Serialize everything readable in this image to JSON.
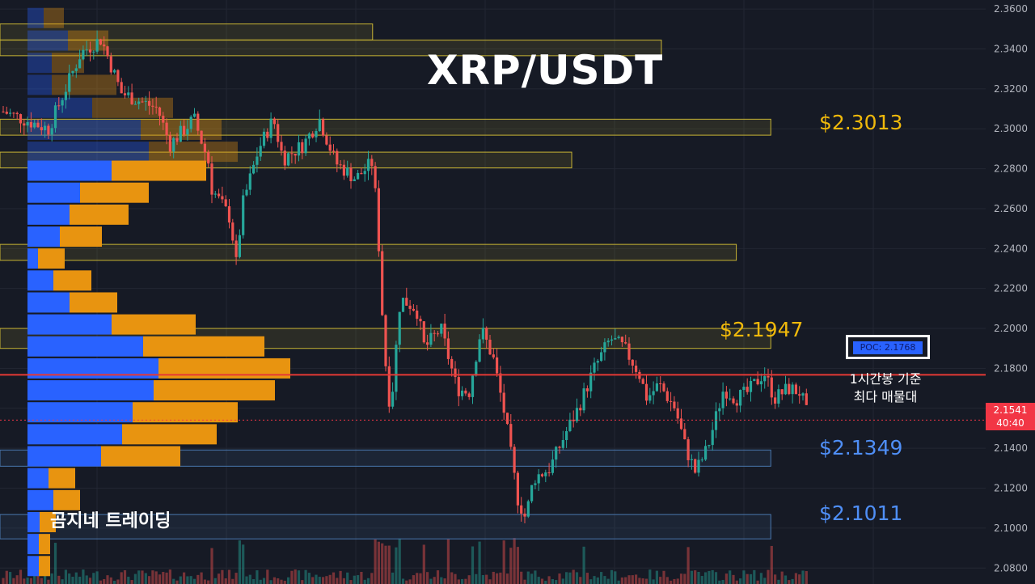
{
  "chart_data": {
    "type": "candlestick",
    "title": "XRP/USDT",
    "y_axis": {
      "min": 2.072,
      "max": 2.3645,
      "position": "right",
      "ticks": [
        "2.3600",
        "2.3400",
        "2.3200",
        "2.3000",
        "2.2800",
        "2.2600",
        "2.2400",
        "2.2200",
        "2.2000",
        "2.1800",
        "2.1600",
        "2.1400",
        "2.1200",
        "2.1000",
        "2.0800"
      ]
    },
    "current_price": {
      "value": "2.1541",
      "countdown": "40:40",
      "price_num": 2.1541
    },
    "poc": {
      "label": "POC: 2.1768",
      "price": 2.1768
    },
    "poc_note": [
      "1시간봉 기준",
      "최다 매물대"
    ],
    "levels": [
      {
        "label": "$2.3013",
        "price": 2.3013,
        "color": "#f0b90b"
      },
      {
        "label": "$2.1947",
        "price": 2.1947,
        "color": "#f0b90b"
      },
      {
        "label": "$2.1349",
        "price": 2.1349,
        "color": "#4f8ff7"
      },
      {
        "label": "$2.1011",
        "price": 2.1011,
        "color": "#4f8ff7"
      }
    ],
    "zones": [
      {
        "color": "yellow",
        "top": 2.3525,
        "bottom": 2.3445,
        "x_end": 0.378
      },
      {
        "color": "yellow",
        "top": 2.3444,
        "bottom": 2.3366,
        "x_end": 0.671
      },
      {
        "color": "yellow",
        "top": 2.3048,
        "bottom": 2.2968,
        "x_end": 0.782
      },
      {
        "color": "yellow",
        "top": 2.2883,
        "bottom": 2.2804,
        "x_end": 0.58
      },
      {
        "color": "yellow",
        "top": 2.2421,
        "bottom": 2.2341,
        "x_end": 0.747
      },
      {
        "color": "yellow",
        "top": 2.2,
        "bottom": 2.19,
        "x_end": 0.782
      },
      {
        "color": "blue",
        "top": 2.1391,
        "bottom": 2.131,
        "x_end": 0.782
      },
      {
        "color": "blue",
        "top": 2.1068,
        "bottom": 2.0946,
        "x_end": 0.782
      }
    ],
    "volume_profile": {
      "bins": [
        {
          "price": 2.3555,
          "buy": 20,
          "sell": 25
        },
        {
          "price": 2.3442,
          "buy": 50,
          "sell": 50
        },
        {
          "price": 2.333,
          "buy": 30,
          "sell": 40
        },
        {
          "price": 2.322,
          "buy": 30,
          "sell": 80
        },
        {
          "price": 2.3105,
          "buy": 80,
          "sell": 100
        },
        {
          "price": 2.2995,
          "buy": 140,
          "sell": 100
        },
        {
          "price": 2.2885,
          "buy": 150,
          "sell": 110
        },
        {
          "price": 2.279,
          "buy": 104,
          "sell": 117
        },
        {
          "price": 2.268,
          "buy": 65,
          "sell": 85
        },
        {
          "price": 2.257,
          "buy": 52,
          "sell": 73
        },
        {
          "price": 2.246,
          "buy": 40,
          "sell": 52
        },
        {
          "price": 2.235,
          "buy": 13,
          "sell": 33
        },
        {
          "price": 2.224,
          "buy": 32,
          "sell": 47
        },
        {
          "price": 2.213,
          "buy": 52,
          "sell": 59
        },
        {
          "price": 2.202,
          "buy": 104,
          "sell": 104
        },
        {
          "price": 2.191,
          "buy": 143,
          "sell": 150
        },
        {
          "price": 2.18,
          "buy": 162,
          "sell": 163
        },
        {
          "price": 2.169,
          "buy": 156,
          "sell": 150
        },
        {
          "price": 2.158,
          "buy": 130,
          "sell": 130
        },
        {
          "price": 2.147,
          "buy": 117,
          "sell": 117
        },
        {
          "price": 2.136,
          "buy": 91,
          "sell": 98
        },
        {
          "price": 2.125,
          "buy": 26,
          "sell": 33
        },
        {
          "price": 2.114,
          "buy": 32,
          "sell": 33
        },
        {
          "price": 2.103,
          "buy": 15,
          "sell": 20
        },
        {
          "price": 2.092,
          "buy": 14,
          "sell": 14
        },
        {
          "price": 2.081,
          "buy": 14,
          "sell": 14
        }
      ]
    },
    "grid": true
  },
  "overlay": {
    "brand": "곰지네 트레이딩"
  },
  "colors": {
    "background": "#161a25",
    "up": "#26a69a",
    "down": "#ef5350",
    "poc_line": "#e53935",
    "profile_buy": "#2962ff",
    "profile_sell": "#f0960e"
  }
}
